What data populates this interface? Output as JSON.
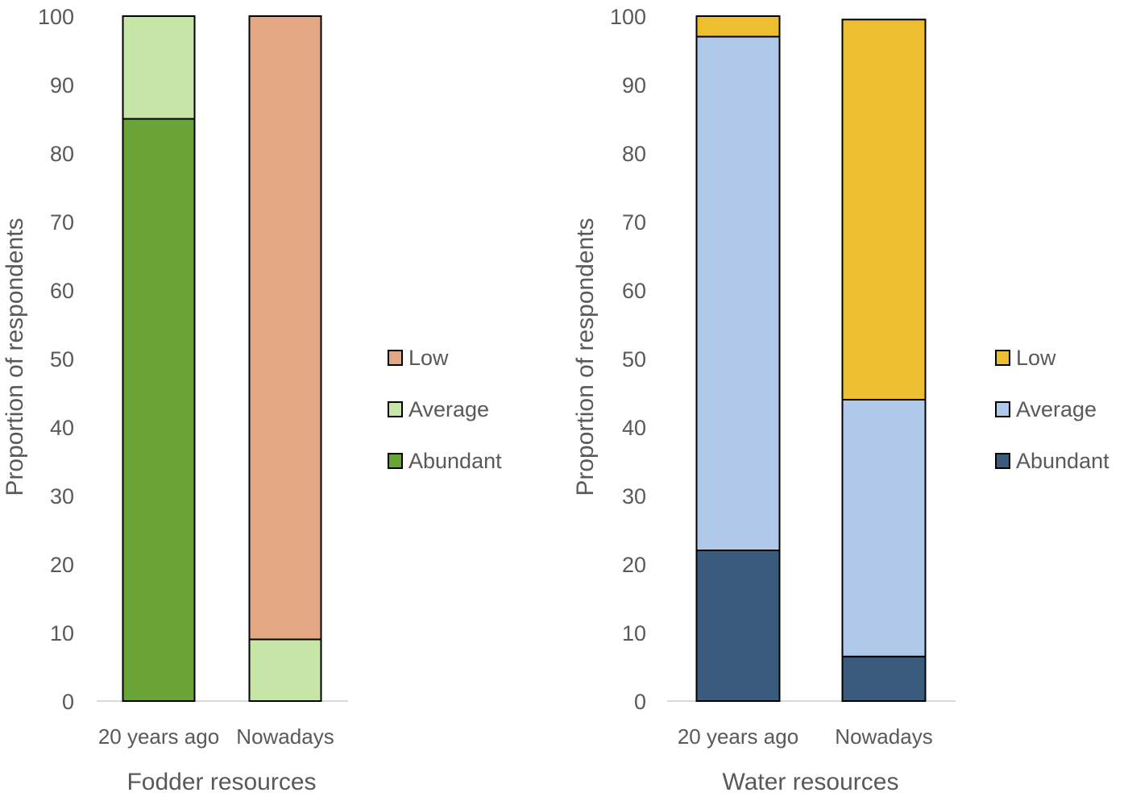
{
  "chart_data": [
    {
      "type": "bar",
      "stacked": true,
      "categories": [
        "20 years ago",
        "Nowadays"
      ],
      "series": [
        {
          "name": "Abundant",
          "values": [
            85,
            0
          ],
          "color": "#6aa336"
        },
        {
          "name": "Average",
          "values": [
            15,
            9
          ],
          "color": "#c5e6a7"
        },
        {
          "name": "Low",
          "values": [
            0,
            91
          ],
          "color": "#e3a784"
        }
      ],
      "title": "",
      "xlabel": "Fodder resources",
      "ylabel": "Proportion of respondents",
      "ylim": [
        0,
        100
      ],
      "yticks": [
        0,
        10,
        20,
        30,
        40,
        50,
        60,
        70,
        80,
        90,
        100
      ],
      "legend": [
        "Low",
        "Average",
        "Abundant"
      ],
      "legend_position": "right",
      "grid": false
    },
    {
      "type": "bar",
      "stacked": true,
      "categories": [
        "20 years ago",
        "Nowadays"
      ],
      "series": [
        {
          "name": "Abundant",
          "values": [
            22,
            6.5
          ],
          "color": "#3a5b7c"
        },
        {
          "name": "Average",
          "values": [
            75,
            37.5
          ],
          "color": "#b0c9ea"
        },
        {
          "name": "Low",
          "values": [
            3,
            55.5
          ],
          "color": "#edbe2f"
        }
      ],
      "title": "",
      "xlabel": "Water resources",
      "ylabel": "Proportion of respondents",
      "ylim": [
        0,
        100
      ],
      "yticks": [
        0,
        10,
        20,
        30,
        40,
        50,
        60,
        70,
        80,
        90,
        100
      ],
      "legend": [
        "Low",
        "Average",
        "Abundant"
      ],
      "legend_position": "right",
      "grid": false
    }
  ]
}
